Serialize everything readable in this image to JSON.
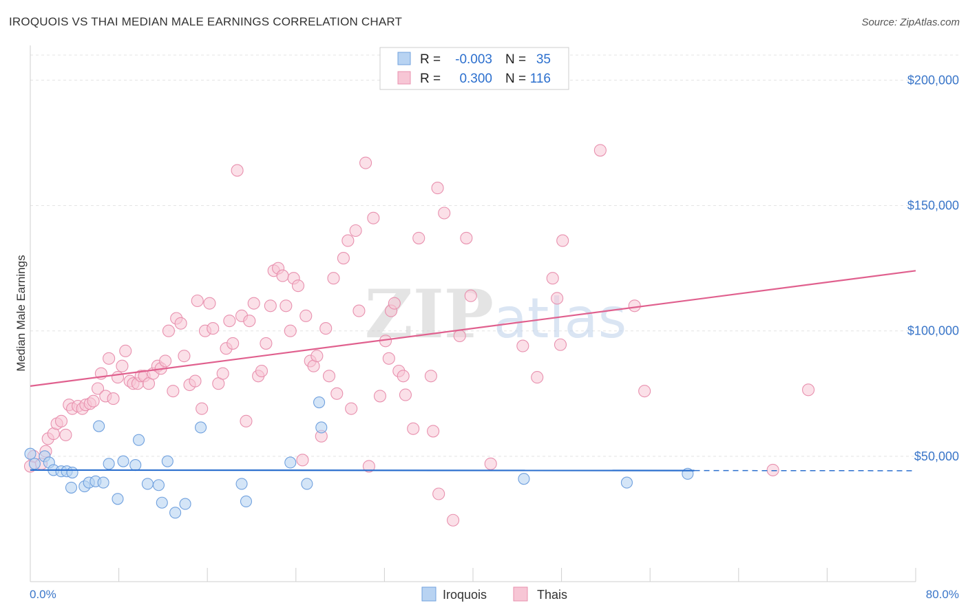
{
  "chart_data": {
    "type": "scatter",
    "title": "IROQUOIS VS THAI MEDIAN MALE EARNINGS CORRELATION CHART",
    "source": "Source: ZipAtlas.com",
    "xlabel": "",
    "ylabel": "Median Male Earnings",
    "xlim": [
      0,
      80
    ],
    "ylim": [
      0,
      210000
    ],
    "x_tick_labels": [
      "0.0%",
      "80.0%"
    ],
    "y_ticks": [
      50000,
      100000,
      150000,
      200000
    ],
    "y_tick_labels": [
      "$50,000",
      "$100,000",
      "$150,000",
      "$200,000"
    ],
    "watermark": "ZIPatlas",
    "legend_top": [
      {
        "r_label": "R =",
        "r_value": "-0.003",
        "n_label": "N =",
        "n_value": "35",
        "color": "#9ec4ef"
      },
      {
        "r_label": "R =",
        "r_value": "0.300",
        "n_label": "N =",
        "n_value": "116",
        "color": "#f4b3c7"
      }
    ],
    "legend_bottom": [
      {
        "name": "Iroquois",
        "color": "#9ec4ef"
      },
      {
        "name": "Thais",
        "color": "#f4b3c7"
      }
    ],
    "colors": {
      "iroquois_fill": "#b8d3f2",
      "iroquois_stroke": "#6fa0de",
      "iroquois_line": "#2b6fce",
      "thais_fill": "#f7c6d5",
      "thais_stroke": "#e890ae",
      "thais_line": "#e0608e",
      "axis_text": "#3a76c9",
      "grid": "#e3e3e3"
    },
    "series": [
      {
        "name": "Iroquois",
        "trend": {
          "x": [
            0,
            60
          ],
          "y": [
            44500,
            44300
          ],
          "dashed_to": 80
        },
        "points": [
          [
            0.0,
            51000
          ],
          [
            0.4,
            47000
          ],
          [
            1.3,
            50000
          ],
          [
            1.7,
            47500
          ],
          [
            2.1,
            44500
          ],
          [
            2.8,
            44000
          ],
          [
            3.3,
            44000
          ],
          [
            3.8,
            43500
          ],
          [
            3.7,
            37500
          ],
          [
            4.9,
            38000
          ],
          [
            5.3,
            39500
          ],
          [
            5.9,
            40000
          ],
          [
            6.2,
            62000
          ],
          [
            6.6,
            39500
          ],
          [
            7.1,
            47000
          ],
          [
            7.9,
            33000
          ],
          [
            8.4,
            48000
          ],
          [
            9.5,
            46500
          ],
          [
            9.8,
            56500
          ],
          [
            10.6,
            39000
          ],
          [
            11.6,
            38500
          ],
          [
            11.9,
            31500
          ],
          [
            12.4,
            48000
          ],
          [
            13.1,
            27500
          ],
          [
            14.0,
            31000
          ],
          [
            15.4,
            61500
          ],
          [
            19.1,
            39000
          ],
          [
            19.5,
            32000
          ],
          [
            23.5,
            47500
          ],
          [
            25.0,
            39000
          ],
          [
            26.1,
            71500
          ],
          [
            26.3,
            61500
          ],
          [
            44.6,
            41000
          ],
          [
            53.9,
            39500
          ],
          [
            59.4,
            43000
          ]
        ]
      },
      {
        "name": "Thais",
        "trend": {
          "x": [
            0,
            80
          ],
          "y": [
            78000,
            124000
          ]
        },
        "points": [
          [
            0.0,
            46000
          ],
          [
            0.3,
            50000
          ],
          [
            1.0,
            47000
          ],
          [
            1.4,
            52000
          ],
          [
            1.6,
            57000
          ],
          [
            2.1,
            59000
          ],
          [
            2.4,
            63000
          ],
          [
            2.8,
            64000
          ],
          [
            3.2,
            58500
          ],
          [
            3.5,
            70500
          ],
          [
            3.8,
            69000
          ],
          [
            4.3,
            70000
          ],
          [
            4.7,
            69000
          ],
          [
            5.0,
            70500
          ],
          [
            5.4,
            71000
          ],
          [
            5.7,
            72000
          ],
          [
            6.1,
            77000
          ],
          [
            6.4,
            83000
          ],
          [
            6.8,
            74000
          ],
          [
            7.1,
            89000
          ],
          [
            7.5,
            73000
          ],
          [
            7.9,
            81500
          ],
          [
            8.3,
            86000
          ],
          [
            8.6,
            92000
          ],
          [
            9.0,
            80000
          ],
          [
            9.3,
            79000
          ],
          [
            9.7,
            79000
          ],
          [
            10.0,
            82000
          ],
          [
            10.3,
            82000
          ],
          [
            10.7,
            79000
          ],
          [
            11.1,
            83000
          ],
          [
            11.5,
            86000
          ],
          [
            11.8,
            85000
          ],
          [
            12.2,
            88000
          ],
          [
            12.5,
            100000
          ],
          [
            12.9,
            76000
          ],
          [
            13.2,
            105000
          ],
          [
            13.6,
            103000
          ],
          [
            13.9,
            90000
          ],
          [
            14.4,
            78500
          ],
          [
            14.9,
            80000
          ],
          [
            15.1,
            112000
          ],
          [
            15.5,
            69000
          ],
          [
            15.8,
            100000
          ],
          [
            16.2,
            111000
          ],
          [
            16.5,
            101000
          ],
          [
            17.0,
            79000
          ],
          [
            17.4,
            83000
          ],
          [
            17.7,
            93000
          ],
          [
            18.0,
            104000
          ],
          [
            18.3,
            95000
          ],
          [
            18.7,
            164000
          ],
          [
            19.1,
            106000
          ],
          [
            19.5,
            64000
          ],
          [
            19.8,
            104000
          ],
          [
            20.2,
            111000
          ],
          [
            20.6,
            82000
          ],
          [
            20.9,
            84000
          ],
          [
            21.3,
            95000
          ],
          [
            21.7,
            110000
          ],
          [
            22.0,
            124000
          ],
          [
            22.4,
            125000
          ],
          [
            22.8,
            122000
          ],
          [
            23.1,
            110000
          ],
          [
            23.5,
            100000
          ],
          [
            23.8,
            121000
          ],
          [
            24.2,
            118000
          ],
          [
            24.6,
            48500
          ],
          [
            24.9,
            106000
          ],
          [
            25.3,
            88000
          ],
          [
            25.6,
            86000
          ],
          [
            25.9,
            90000
          ],
          [
            26.3,
            58000
          ],
          [
            26.7,
            101000
          ],
          [
            27.0,
            82000
          ],
          [
            27.4,
            121000
          ],
          [
            27.7,
            75000
          ],
          [
            28.3,
            129000
          ],
          [
            28.7,
            136000
          ],
          [
            29.0,
            69000
          ],
          [
            29.4,
            140000
          ],
          [
            29.7,
            108000
          ],
          [
            30.3,
            167000
          ],
          [
            30.6,
            46000
          ],
          [
            31.0,
            145000
          ],
          [
            31.6,
            74000
          ],
          [
            32.1,
            96000
          ],
          [
            32.6,
            108000
          ],
          [
            32.9,
            111000
          ],
          [
            33.3,
            84000
          ],
          [
            33.7,
            82000
          ],
          [
            33.9,
            74500
          ],
          [
            34.6,
            61000
          ],
          [
            35.1,
            137000
          ],
          [
            36.2,
            82000
          ],
          [
            36.4,
            60000
          ],
          [
            36.8,
            157000
          ],
          [
            36.9,
            35000
          ],
          [
            37.4,
            147000
          ],
          [
            38.2,
            24500
          ],
          [
            38.8,
            98000
          ],
          [
            39.4,
            137000
          ],
          [
            39.8,
            114000
          ],
          [
            41.6,
            47000
          ],
          [
            44.5,
            94000
          ],
          [
            45.8,
            81500
          ],
          [
            47.2,
            121000
          ],
          [
            47.6,
            113000
          ],
          [
            47.9,
            94500
          ],
          [
            48.1,
            136000
          ],
          [
            51.5,
            172000
          ],
          [
            54.6,
            110000
          ],
          [
            55.5,
            76000
          ],
          [
            67.1,
            44500
          ],
          [
            70.3,
            76500
          ],
          [
            32.4,
            89000
          ]
        ]
      }
    ]
  }
}
